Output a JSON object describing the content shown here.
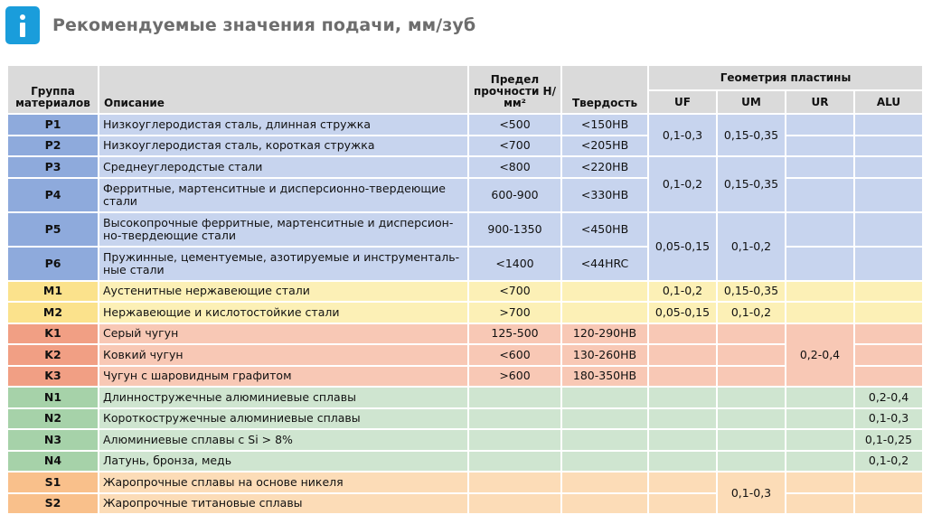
{
  "header": {
    "title": "Рекомендуемые значения подачи, мм/зуб",
    "icon": "info-icon"
  },
  "table": {
    "columns": {
      "group": "Группа материалов",
      "description": "Описание",
      "strength": "Предел прочности Н/мм²",
      "hardness": "Твердость",
      "geometry": "Геометрия пластины",
      "uf": "UF",
      "um": "UM",
      "ur": "UR",
      "alu": "ALU"
    },
    "rows": [
      {
        "code": "P1",
        "desc": "Низкоуглеродистая сталь, длинная стружка",
        "strength": "<500",
        "hardness": "<150HB"
      },
      {
        "code": "P2",
        "desc": "Низкоуглеродистая сталь, короткая стружка",
        "strength": "<700",
        "hardness": "<205HB"
      },
      {
        "code": "P3",
        "desc": "Среднеуглеродстые стали",
        "strength": "<800",
        "hardness": "<220HB"
      },
      {
        "code": "P4",
        "desc": "Ферритные, мартенситные и дисперсионно-твердеющие стали",
        "strength": "600-900",
        "hardness": "<330HB"
      },
      {
        "code": "P5",
        "desc": "Высокопрочные ферритные, мартенситные и дисперсион-но-твердеющие стали",
        "strength": "900-1350",
        "hardness": "<450HB"
      },
      {
        "code": "P6",
        "desc": "Пружинные, цементуемые, азотируемые и инструменталь-ные стали",
        "strength": "<1400",
        "hardness": "<44HRC"
      },
      {
        "code": "M1",
        "desc": "Аустенитные нержавеющие стали",
        "strength": "<700",
        "hardness": ""
      },
      {
        "code": "M2",
        "desc": "Нержавеющие и кислотостойкие стали",
        "strength": ">700",
        "hardness": ""
      },
      {
        "code": "K1",
        "desc": "Серый чугун",
        "strength": "125-500",
        "hardness": "120-290HB"
      },
      {
        "code": "K2",
        "desc": "Ковкий чугун",
        "strength": "<600",
        "hardness": "130-260HB"
      },
      {
        "code": "K3",
        "desc": "Чугун с шаровидным графитом",
        "strength": ">600",
        "hardness": "180-350HB"
      },
      {
        "code": "N1",
        "desc": "Длинностружечные алюминиевые сплавы",
        "strength": "",
        "hardness": ""
      },
      {
        "code": "N2",
        "desc": "Короткостружечные алюминиевые сплавы",
        "strength": "",
        "hardness": ""
      },
      {
        "code": "N3",
        "desc": "Алюминиевые сплавы с Si > 8%",
        "strength": "",
        "hardness": ""
      },
      {
        "code": "N4",
        "desc": "Латунь, бронза, медь",
        "strength": "",
        "hardness": ""
      },
      {
        "code": "S1",
        "desc": "Жаропрочные сплавы на основе никеля",
        "strength": "",
        "hardness": ""
      },
      {
        "code": "S2",
        "desc": "Жаропрочные титановые сплавы",
        "strength": "",
        "hardness": ""
      }
    ],
    "feeds": {
      "p12_uf": "0,1-0,3",
      "p12_um": "0,15-0,35",
      "p34_uf": "0,1-0,2",
      "p34_um": "0,15-0,35",
      "p56_uf": "0,05-0,15",
      "p56_um": "0,1-0,2",
      "m1_uf": "0,1-0,2",
      "m1_um": "0,15-0,35",
      "m2_uf": "0,05-0,15",
      "m2_um": "0,1-0,2",
      "k_ur": "0,2-0,4",
      "n1_alu": "0,2-0,4",
      "n2_alu": "0,1-0,3",
      "n3_alu": "0,1-0,25",
      "n4_alu": "0,1-0,2",
      "s_um": "0,1-0,3"
    }
  }
}
